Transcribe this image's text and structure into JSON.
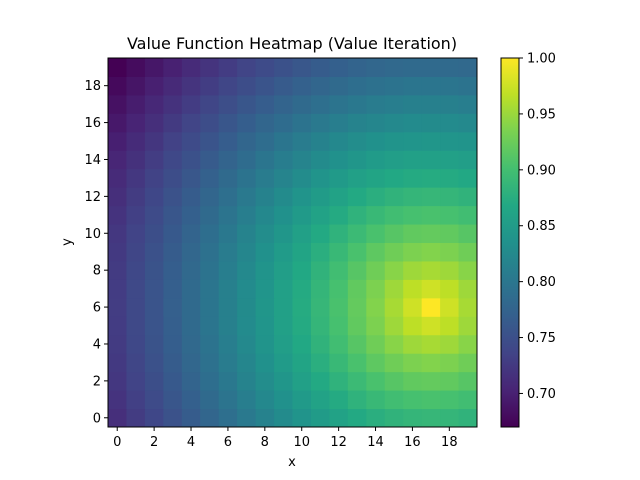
{
  "chart_data": {
    "type": "heatmap",
    "title": "Value Function Heatmap (Value Iteration)",
    "xlabel": "x",
    "ylabel": "y",
    "grid_size": [
      20,
      20
    ],
    "x_ticks": [
      0,
      2,
      4,
      6,
      8,
      10,
      12,
      14,
      16,
      18
    ],
    "y_ticks": [
      0,
      2,
      4,
      6,
      8,
      10,
      12,
      14,
      16,
      18
    ],
    "xlim": [
      -0.5,
      19.5
    ],
    "ylim": [
      -0.5,
      19.5
    ],
    "colormap": "viridis",
    "colorbar": {
      "min": 0.67,
      "max": 1.0,
      "ticks": [
        "0.70",
        "0.75",
        "0.80",
        "0.85",
        "0.90",
        "0.95",
        "1.00"
      ]
    },
    "value_model": {
      "peak": [
        17,
        6
      ],
      "peak_value": 1.0,
      "min_value": 0.67,
      "min_location": [
        0,
        19
      ],
      "description": "values rise smoothly toward the peak near x=17, y=6"
    },
    "grid": false
  }
}
